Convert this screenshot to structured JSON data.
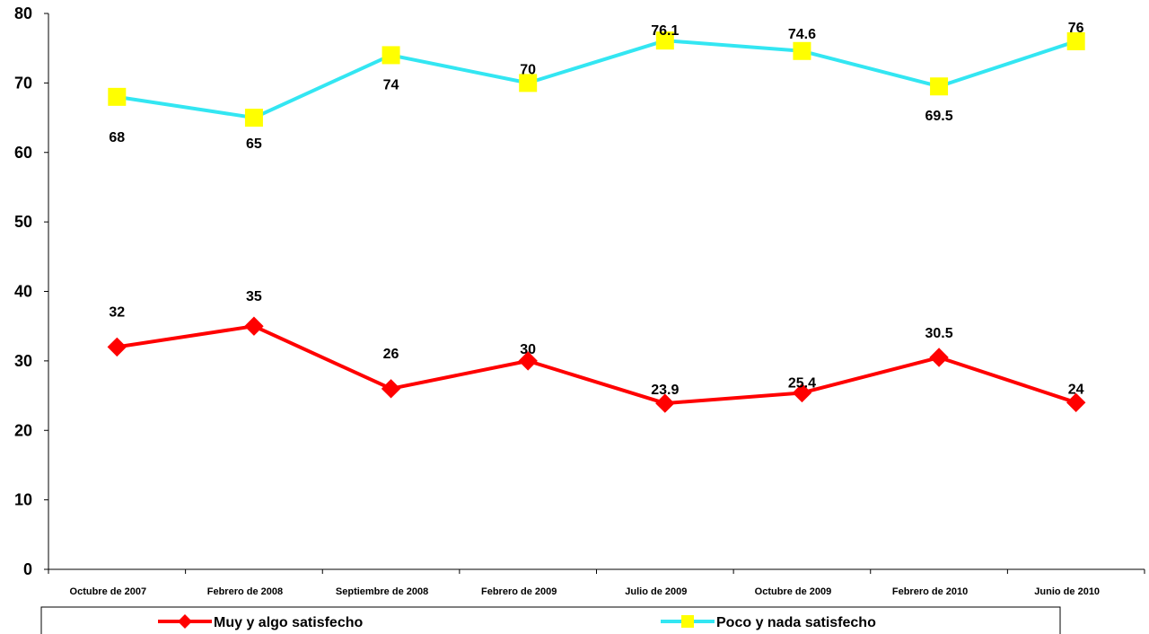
{
  "chart_data": {
    "type": "line",
    "categories": [
      "Octubre de 2007",
      "Febrero de 2008",
      "Septiembre de 2008",
      "Febrero de 2009",
      "Julio de 2009",
      "Octubre de 2009",
      "Febrero de 2010",
      "Junio de 2010"
    ],
    "ylim": [
      0,
      80
    ],
    "yticks": [
      "0",
      "10",
      "20",
      "30",
      "40",
      "50",
      "60",
      "70",
      "80"
    ],
    "grid": false,
    "legend_position": "bottom",
    "series": [
      {
        "name": "Muy y algo satisfecho",
        "color": "#ff0000",
        "marker": "diamond",
        "values": [
          32,
          35,
          26,
          30,
          23.9,
          25.4,
          30.5,
          24
        ],
        "labels": [
          "32",
          "35",
          "26",
          "30",
          "23.9",
          "25.4",
          "30.5",
          "24"
        ]
      },
      {
        "name": "Poco y nada satisfecho",
        "color": "#33e6f2",
        "marker": "square",
        "marker_color": "#ffff00",
        "values": [
          68,
          65,
          74,
          70,
          76.1,
          74.6,
          69.5,
          76
        ],
        "labels": [
          "68",
          "65",
          "74",
          "70",
          "76.1",
          "74.6",
          "69.5",
          "76"
        ]
      }
    ]
  }
}
